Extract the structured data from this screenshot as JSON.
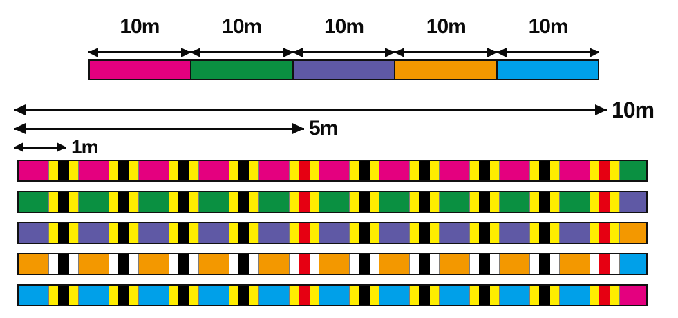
{
  "title": "line-length-marking-diagram",
  "canvas": {
    "background": "#ffffff"
  },
  "top_scale": {
    "segments": [
      {
        "name": "pink",
        "label": "10m",
        "color": "#e4007f"
      },
      {
        "name": "green",
        "label": "10m",
        "color": "#0a9041"
      },
      {
        "name": "purple",
        "label": "10m",
        "color": "#5f59a5"
      },
      {
        "name": "orange",
        "label": "10m",
        "color": "#f39800"
      },
      {
        "name": "blue",
        "label": "10m",
        "color": "#00a0e9"
      }
    ]
  },
  "rulers": [
    {
      "name": "ruler-10m",
      "label": "10m"
    },
    {
      "name": "ruler-5m",
      "label": "5m"
    },
    {
      "name": "ruler-1m",
      "label": "1m"
    }
  ],
  "lines": {
    "meters_per_segment": 10,
    "marker_interval_m": 1,
    "red_marker_positions_m": [
      5,
      10
    ],
    "marker_colors": {
      "center_default": "#000000",
      "center_highlight": "#e60012",
      "side_default": "#ffed00",
      "side_on_orange": "#ffffff"
    },
    "bars": [
      {
        "name": "line-pink",
        "base_color": "#e4007f",
        "stripe_color": "#ffed00",
        "next_color": "#0a9041"
      },
      {
        "name": "line-green",
        "base_color": "#0a9041",
        "stripe_color": "#ffed00",
        "next_color": "#5f59a5"
      },
      {
        "name": "line-purple",
        "base_color": "#5f59a5",
        "stripe_color": "#ffed00",
        "next_color": "#f39800"
      },
      {
        "name": "line-orange",
        "base_color": "#f39800",
        "stripe_color": "#ffffff",
        "next_color": "#00a0e9"
      },
      {
        "name": "line-blue",
        "base_color": "#00a0e9",
        "stripe_color": "#ffed00",
        "next_color": "#e4007f"
      }
    ]
  }
}
